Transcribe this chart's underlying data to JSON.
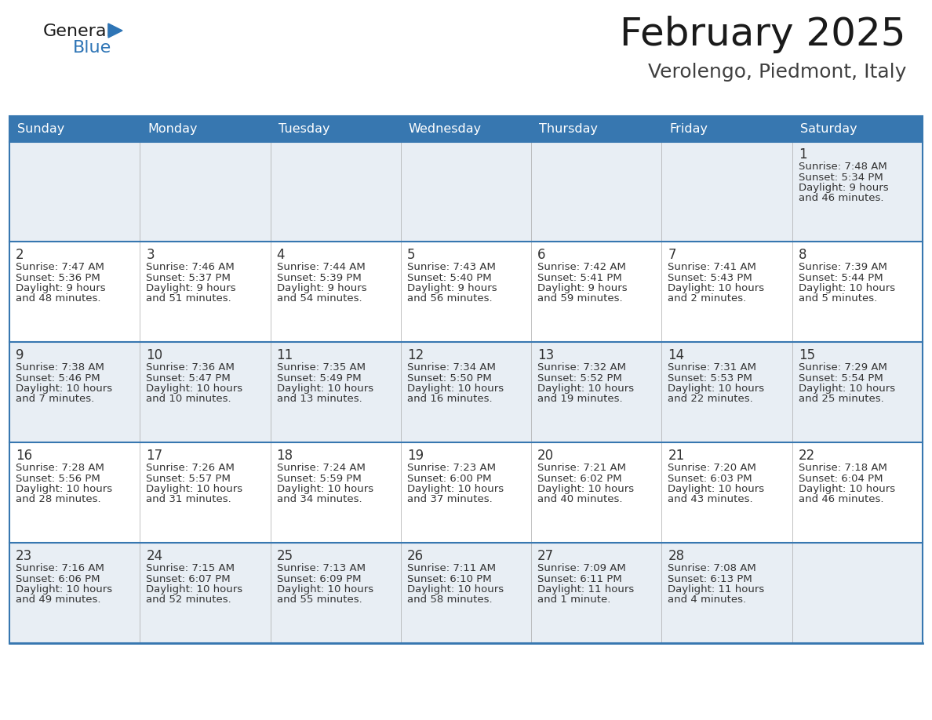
{
  "title": "February 2025",
  "subtitle": "Verolengo, Piedmont, Italy",
  "days_of_week": [
    "Sunday",
    "Monday",
    "Tuesday",
    "Wednesday",
    "Thursday",
    "Friday",
    "Saturday"
  ],
  "header_bg": "#3777B0",
  "header_text": "#FFFFFF",
  "row_bg_odd": "#E8EEF4",
  "row_bg_even": "#FFFFFF",
  "cell_border_color": "#3777B0",
  "day_number_color": "#333333",
  "info_text_color": "#333333",
  "title_color": "#1a1a1a",
  "subtitle_color": "#404040",
  "logo_general_color": "#1a1a1a",
  "logo_blue_color": "#2E75B6",
  "logo_triangle_color": "#2E75B6",
  "calendar": [
    [
      null,
      null,
      null,
      null,
      null,
      null,
      1
    ],
    [
      2,
      3,
      4,
      5,
      6,
      7,
      8
    ],
    [
      9,
      10,
      11,
      12,
      13,
      14,
      15
    ],
    [
      16,
      17,
      18,
      19,
      20,
      21,
      22
    ],
    [
      23,
      24,
      25,
      26,
      27,
      28,
      null
    ]
  ],
  "sun_data": {
    "1": {
      "sunrise": "7:48 AM",
      "sunset": "5:34 PM",
      "daylight": "9 hours and 46 minutes."
    },
    "2": {
      "sunrise": "7:47 AM",
      "sunset": "5:36 PM",
      "daylight": "9 hours and 48 minutes."
    },
    "3": {
      "sunrise": "7:46 AM",
      "sunset": "5:37 PM",
      "daylight": "9 hours and 51 minutes."
    },
    "4": {
      "sunrise": "7:44 AM",
      "sunset": "5:39 PM",
      "daylight": "9 hours and 54 minutes."
    },
    "5": {
      "sunrise": "7:43 AM",
      "sunset": "5:40 PM",
      "daylight": "9 hours and 56 minutes."
    },
    "6": {
      "sunrise": "7:42 AM",
      "sunset": "5:41 PM",
      "daylight": "9 hours and 59 minutes."
    },
    "7": {
      "sunrise": "7:41 AM",
      "sunset": "5:43 PM",
      "daylight": "10 hours and 2 minutes."
    },
    "8": {
      "sunrise": "7:39 AM",
      "sunset": "5:44 PM",
      "daylight": "10 hours and 5 minutes."
    },
    "9": {
      "sunrise": "7:38 AM",
      "sunset": "5:46 PM",
      "daylight": "10 hours and 7 minutes."
    },
    "10": {
      "sunrise": "7:36 AM",
      "sunset": "5:47 PM",
      "daylight": "10 hours and 10 minutes."
    },
    "11": {
      "sunrise": "7:35 AM",
      "sunset": "5:49 PM",
      "daylight": "10 hours and 13 minutes."
    },
    "12": {
      "sunrise": "7:34 AM",
      "sunset": "5:50 PM",
      "daylight": "10 hours and 16 minutes."
    },
    "13": {
      "sunrise": "7:32 AM",
      "sunset": "5:52 PM",
      "daylight": "10 hours and 19 minutes."
    },
    "14": {
      "sunrise": "7:31 AM",
      "sunset": "5:53 PM",
      "daylight": "10 hours and 22 minutes."
    },
    "15": {
      "sunrise": "7:29 AM",
      "sunset": "5:54 PM",
      "daylight": "10 hours and 25 minutes."
    },
    "16": {
      "sunrise": "7:28 AM",
      "sunset": "5:56 PM",
      "daylight": "10 hours and 28 minutes."
    },
    "17": {
      "sunrise": "7:26 AM",
      "sunset": "5:57 PM",
      "daylight": "10 hours and 31 minutes."
    },
    "18": {
      "sunrise": "7:24 AM",
      "sunset": "5:59 PM",
      "daylight": "10 hours and 34 minutes."
    },
    "19": {
      "sunrise": "7:23 AM",
      "sunset": "6:00 PM",
      "daylight": "10 hours and 37 minutes."
    },
    "20": {
      "sunrise": "7:21 AM",
      "sunset": "6:02 PM",
      "daylight": "10 hours and 40 minutes."
    },
    "21": {
      "sunrise": "7:20 AM",
      "sunset": "6:03 PM",
      "daylight": "10 hours and 43 minutes."
    },
    "22": {
      "sunrise": "7:18 AM",
      "sunset": "6:04 PM",
      "daylight": "10 hours and 46 minutes."
    },
    "23": {
      "sunrise": "7:16 AM",
      "sunset": "6:06 PM",
      "daylight": "10 hours and 49 minutes."
    },
    "24": {
      "sunrise": "7:15 AM",
      "sunset": "6:07 PM",
      "daylight": "10 hours and 52 minutes."
    },
    "25": {
      "sunrise": "7:13 AM",
      "sunset": "6:09 PM",
      "daylight": "10 hours and 55 minutes."
    },
    "26": {
      "sunrise": "7:11 AM",
      "sunset": "6:10 PM",
      "daylight": "10 hours and 58 minutes."
    },
    "27": {
      "sunrise": "7:09 AM",
      "sunset": "6:11 PM",
      "daylight": "11 hours and 1 minute."
    },
    "28": {
      "sunrise": "7:08 AM",
      "sunset": "6:13 PM",
      "daylight": "11 hours and 4 minutes."
    }
  }
}
